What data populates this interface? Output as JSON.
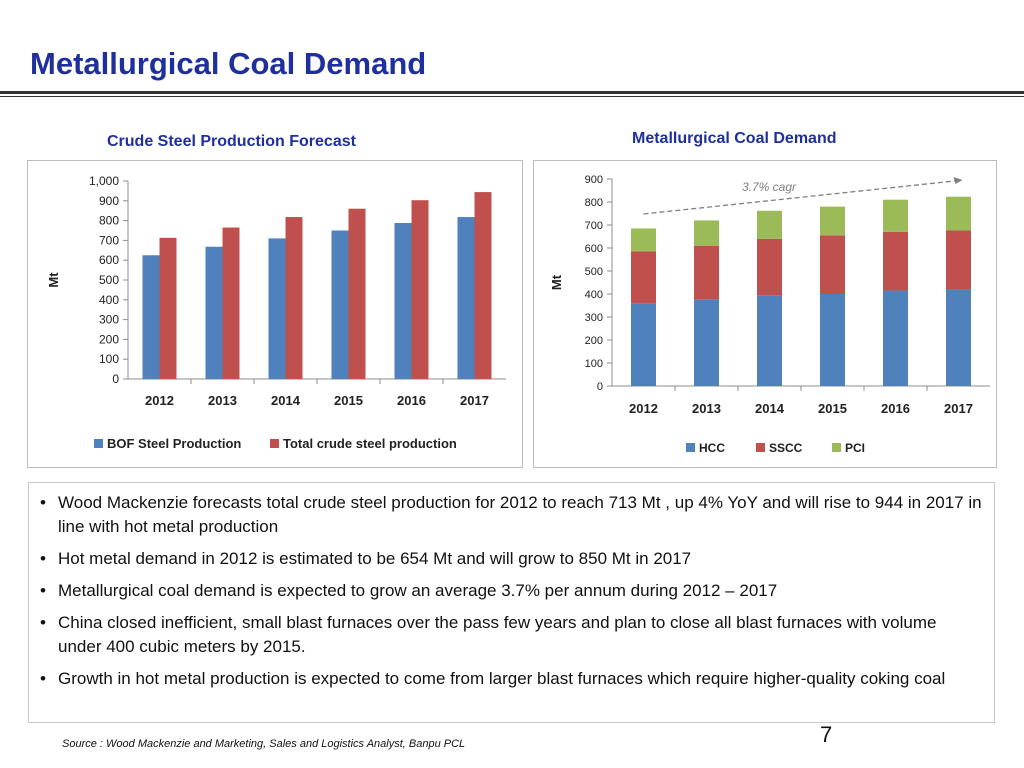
{
  "page": {
    "title": "Metallurgical Coal Demand",
    "page_number": "7",
    "source": "Source : Wood Mackenzie and Marketing, Sales and Logistics Analyst, Banpu PCL"
  },
  "bullets": [
    "Wood Mackenzie forecasts total crude steel production for 2012 to reach 713 Mt , up 4% YoY and will rise to 944 in 2017 in line with hot metal production",
    "Hot metal demand in 2012 is estimated to be 654 Mt and will grow to 850 Mt in 2017",
    "Metallurgical coal demand is expected to grow an average 3.7% per annum during 2012 – 2017",
    "China closed inefficient, small blast furnaces over the pass few years and plan to close all blast furnaces with volume under 400 cubic meters by 2015.",
    "Growth in hot metal production is expected to come from larger blast furnaces which require higher-quality coking coal"
  ],
  "chart_data": [
    {
      "type": "bar",
      "title": "Crude Steel Production Forecast",
      "ylabel": "Mt",
      "ylim": [
        0,
        1000
      ],
      "yticks": [
        "0",
        "100",
        "200",
        "300",
        "400",
        "500",
        "600",
        "700",
        "800",
        "900",
        "1,000"
      ],
      "categories": [
        "2012",
        "2013",
        "2014",
        "2015",
        "2016",
        "2017"
      ],
      "series": [
        {
          "name": "BOF Steel Production",
          "color": "#4f81bd",
          "values": [
            625,
            668,
            710,
            750,
            788,
            818
          ]
        },
        {
          "name": "Total crude steel production",
          "color": "#c0504d",
          "values": [
            713,
            765,
            818,
            860,
            903,
            944
          ]
        }
      ],
      "legend": "bottom",
      "grid": false
    },
    {
      "type": "bar",
      "stacked": true,
      "title": "Metallurgical Coal Demand",
      "ylabel": "Mt",
      "ylim": [
        0,
        900
      ],
      "yticks": [
        "0",
        "100",
        "200",
        "300",
        "400",
        "500",
        "600",
        "700",
        "800",
        "900"
      ],
      "categories": [
        "2012",
        "2013",
        "2014",
        "2015",
        "2016",
        "2017"
      ],
      "series": [
        {
          "name": "HCC",
          "color": "#4f81bd",
          "values": [
            360,
            375,
            395,
            400,
            415,
            418
          ]
        },
        {
          "name": "SSCC",
          "color": "#c0504d",
          "values": [
            225,
            235,
            245,
            255,
            255,
            258
          ]
        },
        {
          "name": "PCI",
          "color": "#9bbb59",
          "values": [
            100,
            110,
            122,
            125,
            140,
            147
          ]
        }
      ],
      "annotation": "3.7% cagr",
      "legend": "bottom",
      "grid": false
    }
  ]
}
